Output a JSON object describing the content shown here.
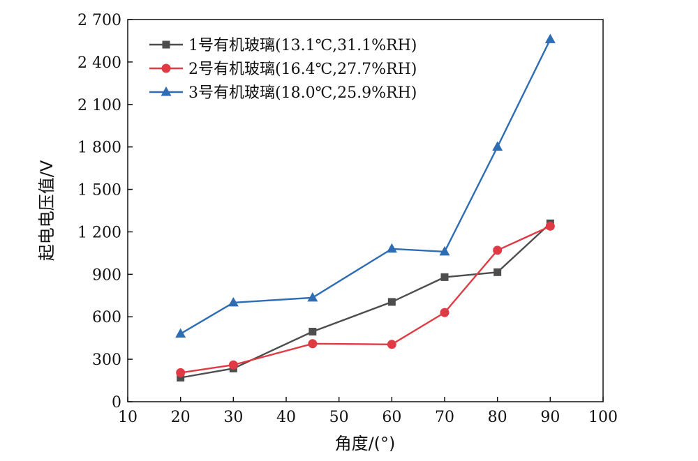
{
  "chart_data": {
    "type": "line",
    "xlabel": "角度/(°)",
    "ylabel": "起电电压值/V",
    "xlim": [
      10,
      100
    ],
    "ylim": [
      0,
      2700
    ],
    "x_ticks": [
      10,
      20,
      30,
      40,
      50,
      60,
      70,
      80,
      90,
      100
    ],
    "y_ticks": [
      0,
      300,
      600,
      900,
      1200,
      1500,
      1800,
      2100,
      2400,
      2700
    ],
    "x_tick_labels": [
      "10",
      "20",
      "30",
      "40",
      "50",
      "60",
      "70",
      "80",
      "90",
      "100"
    ],
    "y_tick_labels": [
      "0",
      "300",
      "600",
      "900",
      "1 200",
      "1 500",
      "1 800",
      "2 100",
      "2 400",
      "2 700"
    ],
    "grid": false,
    "legend_position": "top-left",
    "x": [
      20,
      30,
      45,
      60,
      70,
      80,
      90
    ],
    "series": [
      {
        "name": "1号有机玻璃(13.1℃,31.1%RH)",
        "color": "#4d4d4d",
        "marker": "square",
        "values": [
          170,
          235,
          495,
          705,
          880,
          915,
          1260
        ]
      },
      {
        "name": "2号有机玻璃(16.4℃,27.7%RH)",
        "color": "#e03a45",
        "marker": "circle",
        "values": [
          205,
          260,
          410,
          405,
          630,
          1070,
          1240
        ]
      },
      {
        "name": "3号有机玻璃(18.0℃,25.9%RH)",
        "color": "#2e6db4",
        "marker": "triangle",
        "values": [
          480,
          700,
          735,
          1080,
          1060,
          1800,
          2560
        ]
      }
    ]
  }
}
